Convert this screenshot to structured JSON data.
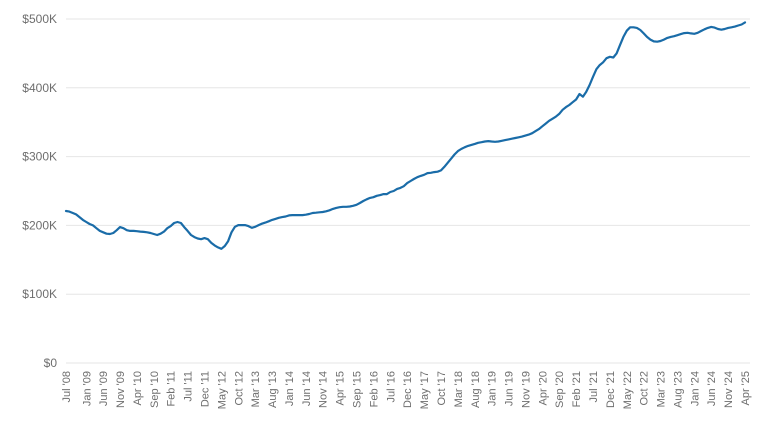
{
  "chart_data": {
    "type": "line",
    "title": "",
    "legend": "none",
    "grid": true,
    "ylim": [
      0,
      500
    ],
    "y_axis": {
      "tick_labels": [
        "$0",
        "$100K",
        "$200K",
        "$300K",
        "$400K",
        "$500K"
      ],
      "tick_values": [
        0,
        100,
        200,
        300,
        400,
        500
      ],
      "unit": "USD thousands"
    },
    "x_axis": {
      "tick_labels": [
        "Jul '08",
        "Jan '09",
        "Jun '09",
        "Nov '09",
        "Apr '10",
        "Sep '10",
        "Feb '11",
        "Jul '11",
        "Dec '11",
        "May '12",
        "Oct '12",
        "Mar '13",
        "Aug '13",
        "Jan '14",
        "Jun '14",
        "Nov '14",
        "Apr '15",
        "Sep '15",
        "Feb '16",
        "Jul '16",
        "Dec '16",
        "May '17",
        "Oct '17",
        "Mar '18",
        "Aug '18",
        "Jan '19",
        "Jun '19",
        "Nov '19",
        "Apr '20",
        "Sep '20",
        "Feb '21",
        "Jul '21",
        "Dec '21",
        "May '22",
        "Oct '22",
        "Mar '23",
        "Aug '23",
        "Jan '24",
        "Jun '24",
        "Nov '24",
        "Apr '25"
      ],
      "tick_month_offsets": [
        0,
        6,
        11,
        16,
        21,
        26,
        31,
        36,
        41,
        46,
        51,
        56,
        61,
        66,
        71,
        76,
        81,
        86,
        91,
        96,
        101,
        106,
        111,
        116,
        121,
        126,
        131,
        136,
        141,
        146,
        151,
        156,
        161,
        166,
        171,
        176,
        181,
        186,
        191,
        196,
        201
      ]
    },
    "series": [
      {
        "start_label": "Jul '08",
        "end_label": "Apr '25",
        "interval": "monthly",
        "values_thousands": [
          221,
          220,
          218,
          216,
          212,
          208,
          205,
          202,
          200,
          196,
          192,
          190,
          188,
          187.5,
          189,
          193,
          197.5,
          196,
          193,
          192,
          192,
          191.5,
          191,
          190.5,
          190,
          189,
          187.5,
          186,
          188,
          191,
          196,
          199,
          203.5,
          205,
          203.5,
          197.5,
          192,
          186,
          183,
          181,
          180,
          181.5,
          180,
          174.5,
          171,
          168,
          166,
          170,
          177,
          190,
          198,
          200.5,
          200.5,
          200.5,
          199,
          196.5,
          198,
          200.5,
          202.5,
          204,
          206,
          208,
          209.5,
          211,
          212,
          213,
          214.5,
          215,
          215,
          215,
          215,
          215.5,
          216.5,
          218,
          218.5,
          219,
          219.5,
          220.5,
          222,
          224,
          225.5,
          226.5,
          227,
          227,
          227.5,
          228.5,
          230,
          232.5,
          235.5,
          238,
          240,
          241,
          243,
          244,
          245.5,
          245.5,
          248.5,
          250,
          253,
          254.5,
          257,
          261.5,
          264.5,
          267.5,
          270,
          272,
          273.5,
          276,
          276.5,
          277.5,
          278,
          280,
          285,
          291,
          297,
          303,
          308,
          311,
          313.5,
          315.5,
          317,
          318.5,
          320,
          321,
          322,
          322.5,
          322,
          321.5,
          322,
          323,
          324,
          325,
          326,
          327,
          328,
          329,
          330.5,
          332,
          334,
          337,
          340,
          344,
          348,
          352,
          355,
          358,
          362,
          368,
          372,
          375,
          379,
          383,
          391,
          387,
          394,
          404,
          416,
          427,
          433,
          437,
          443,
          445,
          444,
          450,
          462,
          474,
          483,
          488,
          488,
          487,
          484,
          479,
          474,
          470,
          467.5,
          467,
          468,
          470,
          472.5,
          474,
          475,
          476.5,
          478,
          479.5,
          480,
          479,
          478.5,
          480,
          482.5,
          485,
          487,
          488.5,
          487.5,
          485.5,
          484.5,
          485.5,
          487,
          488,
          489,
          490.5,
          492,
          495
        ]
      }
    ],
    "colors": {
      "line": "#1a6ca8",
      "gridline": "#e6e6e6",
      "axis_label": "#6e6e6e",
      "background": "#ffffff"
    }
  }
}
